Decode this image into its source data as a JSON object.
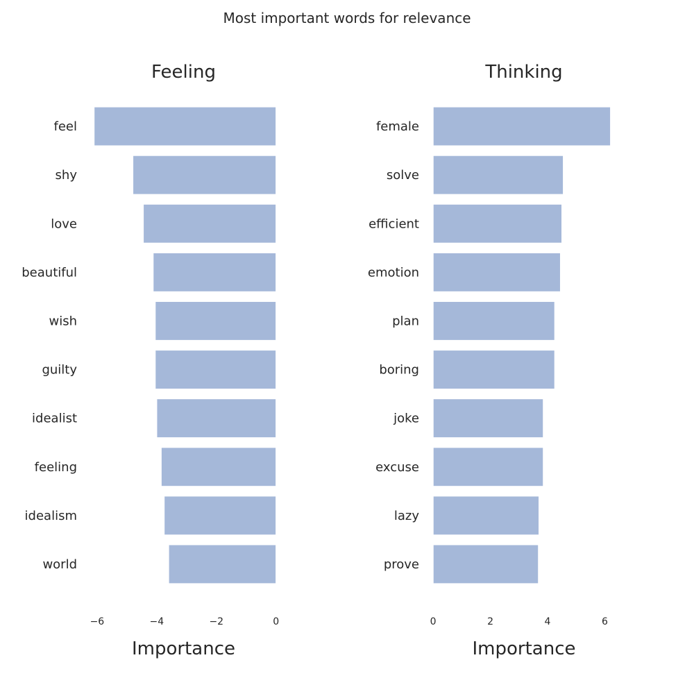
{
  "suptitle": "Most important words for relevance",
  "chart_data": [
    {
      "type": "bar",
      "orientation": "horizontal",
      "title": "Feeling",
      "xlabel": "Importance",
      "categories": [
        "feel",
        "shy",
        "love",
        "beautiful",
        "wish",
        "guilty",
        "idealist",
        "feeling",
        "idealism",
        "world"
      ],
      "values": [
        -6.1,
        -4.8,
        -4.45,
        -4.12,
        -4.05,
        -4.05,
        -4.0,
        -3.85,
        -3.75,
        -3.6
      ],
      "xlim": [
        -6.3,
        0.1
      ],
      "xticks": [
        -6,
        -4,
        -2,
        0
      ],
      "xtick_labels": [
        "−6",
        "−4",
        "−2",
        "0"
      ],
      "color": "#a5b8d9",
      "grid": false
    },
    {
      "type": "bar",
      "orientation": "horizontal",
      "title": "Thinking",
      "xlabel": "Importance",
      "categories": [
        "female",
        "solve",
        "efficient",
        "emotion",
        "plan",
        "boring",
        "joke",
        "excuse",
        "lazy",
        "prove"
      ],
      "values": [
        6.2,
        4.55,
        4.5,
        4.45,
        4.25,
        4.25,
        3.85,
        3.85,
        3.7,
        3.68
      ],
      "xlim": [
        -0.1,
        6.45
      ],
      "xticks": [
        0,
        2,
        4,
        6
      ],
      "xtick_labels": [
        "0",
        "2",
        "4",
        "6"
      ],
      "color": "#a5b8d9",
      "grid": false
    }
  ]
}
